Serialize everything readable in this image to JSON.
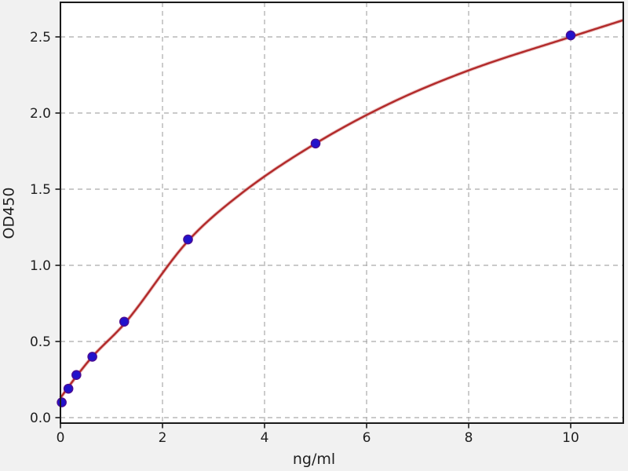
{
  "chart_data": {
    "type": "scatter",
    "title": "",
    "xlabel": "ng/ml",
    "ylabel": "OD450",
    "xlim": [
      0,
      11.03
    ],
    "ylim": [
      -0.04,
      2.73
    ],
    "grid": true,
    "grid_style": "dashed",
    "legend": null,
    "x_ticks": {
      "values": [
        0,
        2,
        4,
        6,
        8,
        10
      ],
      "labels": [
        "0",
        "2",
        "4",
        "6",
        "8",
        "10"
      ]
    },
    "y_ticks": {
      "values": [
        0.0,
        0.5,
        1.0,
        1.5,
        2.0,
        2.5
      ],
      "labels": [
        "0.0",
        "0.5",
        "1.0",
        "1.5",
        "2.0",
        "2.5"
      ]
    },
    "series": [
      {
        "name": "standard-points",
        "type": "scatter",
        "x": [
          0,
          0.156,
          0.3125,
          0.625,
          1.25,
          2.5,
          5,
          10
        ],
        "y": [
          0.1,
          0.19,
          0.28,
          0.4,
          0.63,
          1.17,
          1.8,
          2.51
        ]
      },
      {
        "name": "fit-curve",
        "type": "line",
        "points": [
          [
            0,
            0.13
          ],
          [
            0.31,
            0.27
          ],
          [
            0.625,
            0.4
          ],
          [
            1.25,
            0.615
          ],
          [
            2.5,
            1.16
          ],
          [
            3.5,
            1.46
          ],
          [
            5,
            1.8
          ],
          [
            6.5,
            2.07
          ],
          [
            8,
            2.28
          ],
          [
            10,
            2.5
          ],
          [
            11.03,
            2.61
          ]
        ]
      }
    ]
  },
  "colors": {
    "figure_bg": "#f1f1f1",
    "plot_bg": "#ffffff",
    "grid": "#aaaaaa",
    "spine": "#1a1a1a",
    "tick_text": "#1f1f1f",
    "curve": "#b22a2a",
    "curve_halo": "#d98a8a",
    "marker_fill": "#2112cb",
    "marker_edge": "#4b0d93"
  }
}
